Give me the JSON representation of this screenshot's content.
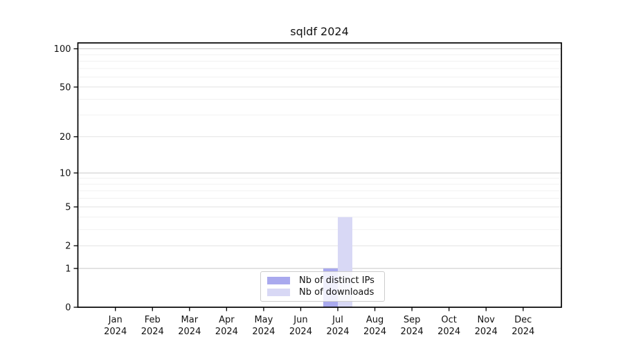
{
  "chart_data": {
    "type": "bar",
    "title": "sqldf 2024",
    "categories": [
      "Jan 2024",
      "Feb 2024",
      "Mar 2024",
      "Apr 2024",
      "May 2024",
      "Jun 2024",
      "Jul 2024",
      "Aug 2024",
      "Sep 2024",
      "Oct 2024",
      "Nov 2024",
      "Dec 2024"
    ],
    "series": [
      {
        "name": "Nb of distinct IPs",
        "color": "#a9a9ee",
        "values": [
          0,
          0,
          0,
          0,
          0,
          0,
          1,
          0,
          0,
          0,
          0,
          0
        ]
      },
      {
        "name": "Nb of downloads",
        "color": "#d8d8f5",
        "values": [
          0,
          0,
          0,
          0,
          0,
          0,
          4,
          0,
          0,
          0,
          0,
          0
        ]
      }
    ],
    "yscale": "log1p",
    "yticks": [
      0,
      1,
      2,
      5,
      10,
      20,
      50,
      100
    ],
    "ylim": [
      0,
      110
    ],
    "xlabel": "",
    "ylabel": "",
    "grid": true,
    "legend_position": "bottom-center"
  },
  "colors": {
    "bar_distinct_ips": "#a9a9ee",
    "bar_downloads": "#d8d8f5",
    "grid_major": "#c8c8c8",
    "grid_mid": "#e2e2e2",
    "grid_minor": "#f1f1f1",
    "axis": "#000000",
    "text": "#111111",
    "legend_border": "#cccccc"
  }
}
